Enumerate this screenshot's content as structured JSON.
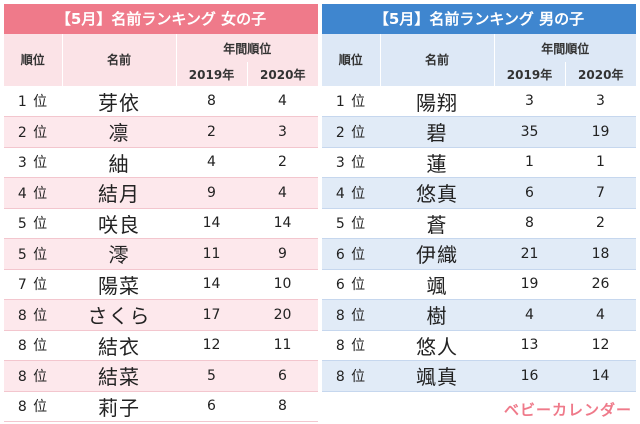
{
  "girls": {
    "title": "【5月】名前ランキング 女の子",
    "headers": {
      "rank": "順位",
      "name": "名前",
      "year_group": "年間順位",
      "y1": "2019年",
      "y2": "2020年"
    },
    "rows": [
      {
        "rank": "1 位",
        "name": "芽依",
        "y2019": "8",
        "y2020": "4"
      },
      {
        "rank": "2 位",
        "name": "凛",
        "y2019": "2",
        "y2020": "3"
      },
      {
        "rank": "3 位",
        "name": "紬",
        "y2019": "4",
        "y2020": "2"
      },
      {
        "rank": "4 位",
        "name": "結月",
        "y2019": "9",
        "y2020": "4"
      },
      {
        "rank": "5 位",
        "name": "咲良",
        "y2019": "14",
        "y2020": "14"
      },
      {
        "rank": "5 位",
        "name": "澪",
        "y2019": "11",
        "y2020": "9"
      },
      {
        "rank": "7 位",
        "name": "陽菜",
        "y2019": "14",
        "y2020": "10"
      },
      {
        "rank": "8 位",
        "name": "さくら",
        "y2019": "17",
        "y2020": "20"
      },
      {
        "rank": "8 位",
        "name": "結衣",
        "y2019": "12",
        "y2020": "11"
      },
      {
        "rank": "8 位",
        "name": "結菜",
        "y2019": "5",
        "y2020": "6"
      },
      {
        "rank": "8 位",
        "name": "莉子",
        "y2019": "6",
        "y2020": "8"
      }
    ]
  },
  "boys": {
    "title": "【5月】名前ランキング 男の子",
    "headers": {
      "rank": "順位",
      "name": "名前",
      "year_group": "年間順位",
      "y1": "2019年",
      "y2": "2020年"
    },
    "rows": [
      {
        "rank": "1 位",
        "name": "陽翔",
        "y2019": "3",
        "y2020": "3"
      },
      {
        "rank": "2 位",
        "name": "碧",
        "y2019": "35",
        "y2020": "19"
      },
      {
        "rank": "3 位",
        "name": "蓮",
        "y2019": "1",
        "y2020": "1"
      },
      {
        "rank": "4 位",
        "name": "悠真",
        "y2019": "6",
        "y2020": "7"
      },
      {
        "rank": "5 位",
        "name": "蒼",
        "y2019": "8",
        "y2020": "2"
      },
      {
        "rank": "6 位",
        "name": "伊織",
        "y2019": "21",
        "y2020": "18"
      },
      {
        "rank": "6 位",
        "name": "颯",
        "y2019": "19",
        "y2020": "26"
      },
      {
        "rank": "8 位",
        "name": "樹",
        "y2019": "4",
        "y2020": "4"
      },
      {
        "rank": "8 位",
        "name": "悠人",
        "y2019": "13",
        "y2020": "12"
      },
      {
        "rank": "8 位",
        "name": "颯真",
        "y2019": "16",
        "y2020": "14"
      }
    ]
  },
  "brand": {
    "logo_text": "ベビーカレンダー"
  },
  "colors": {
    "girls_accent": "#ef7a8a",
    "boys_accent": "#3f86cf"
  }
}
